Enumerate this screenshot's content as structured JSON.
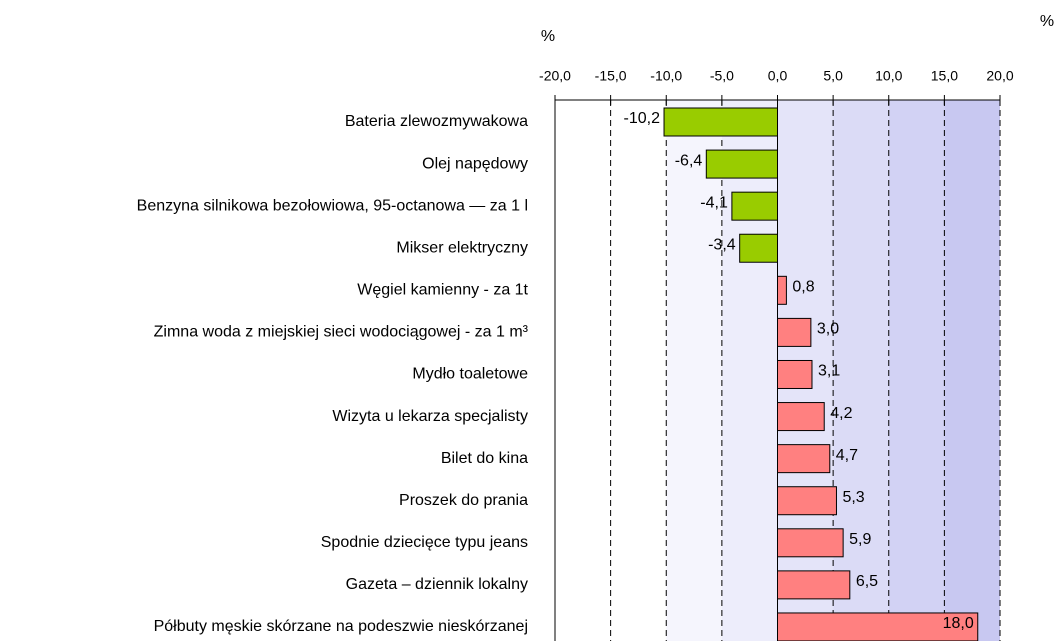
{
  "chart_data": {
    "type": "hbar",
    "xlabel": "%",
    "corner_label": "%",
    "categories": [
      "Bateria zlewozmywakowa",
      "Olej napędowy",
      "Benzyna silnikowa bezołowiowa, 95-octanowa — za 1 l",
      "Mikser elektryczny",
      "Węgiel kamienny - za 1t",
      "Zimna woda z miejskiej sieci wodociągowej - za 1 m³",
      "Mydło toaletowe",
      "Wizyta u lekarza specjalisty",
      "Bilet do kina",
      "Proszek do prania",
      "Spodnie dziecięce typu jeans",
      "Gazeta – dziennik lokalny",
      "Półbuty męskie skórzane na podeszwie nieskórzanej"
    ],
    "values": [
      -10.2,
      -6.4,
      -4.1,
      -3.4,
      0.8,
      3.0,
      3.1,
      4.2,
      4.7,
      5.3,
      5.9,
      6.5,
      18.0
    ],
    "value_labels": [
      "-10,2",
      "-6,4",
      "-4,1",
      "-3,4",
      "0,8",
      "3,0",
      "3,1",
      "4,2",
      "4,7",
      "5,3",
      "5,9",
      "6,5",
      "18,0"
    ],
    "colors": [
      "#99cc00",
      "#99cc00",
      "#99cc00",
      "#99cc00",
      "#ff8080",
      "#ff8080",
      "#ff8080",
      "#ff8080",
      "#ff8080",
      "#ff8080",
      "#ff8080",
      "#ff8080",
      "#ff8080"
    ],
    "xlim": [
      -20,
      20
    ],
    "xticks": [
      {
        "value": -20,
        "label": "-20,0"
      },
      {
        "value": -15,
        "label": "-15,0"
      },
      {
        "value": -10,
        "label": "-10,0"
      },
      {
        "value": -5,
        "label": "-5,0"
      },
      {
        "value": 0,
        "label": "0,0"
      },
      {
        "value": 5,
        "label": "5,0"
      },
      {
        "value": 10,
        "label": "10,0"
      },
      {
        "value": 15,
        "label": "15,0"
      },
      {
        "value": 20,
        "label": "20,0"
      }
    ],
    "grid": true
  }
}
